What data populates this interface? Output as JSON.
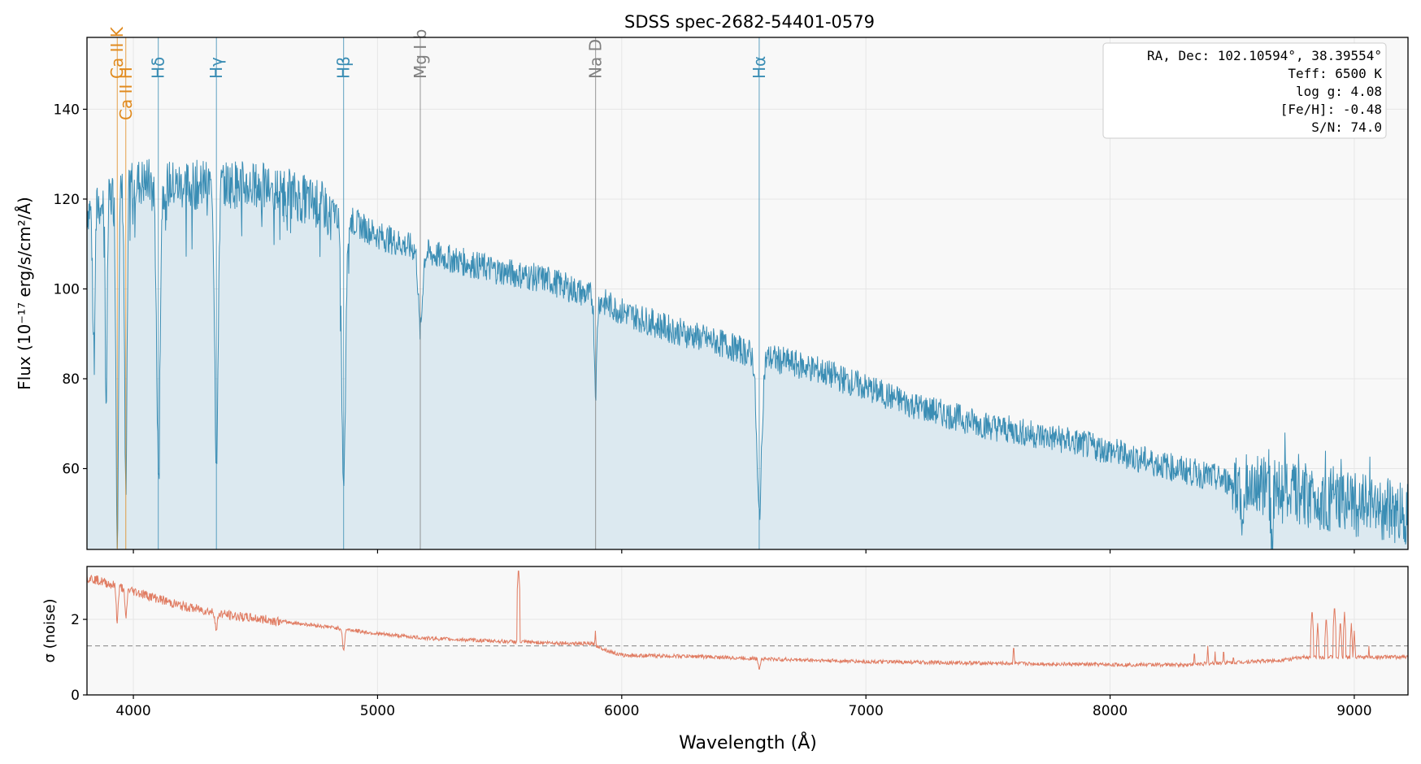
{
  "chart_data": [
    {
      "type": "line",
      "title": "SDSS spec-2682-54401-0579",
      "ylabel": "Flux (10⁻¹⁷ erg/s/cm²/Å)",
      "xlim": [
        3810,
        9220
      ],
      "ylim": [
        42,
        156
      ],
      "y_ticks": [
        60,
        80,
        100,
        120,
        140
      ],
      "grid": true,
      "fill_under": true,
      "colors": {
        "line": "#3a8db4",
        "fill": "#dce9f0",
        "background": "#f8f8f8",
        "annotation_box": "#ffffff"
      },
      "series": [
        {
          "continuum": [
            [
              3820,
              118
            ],
            [
              3900,
              120
            ],
            [
              4000,
              124
            ],
            [
              4200,
              123
            ],
            [
              4400,
              123.5
            ],
            [
              4600,
              122
            ],
            [
              4800,
              118
            ],
            [
              5000,
              112
            ],
            [
              5200,
              108
            ],
            [
              5500,
              104
            ],
            [
              5700,
              102
            ],
            [
              5890,
              98
            ],
            [
              6000,
              95
            ],
            [
              6200,
              91
            ],
            [
              6400,
              88
            ],
            [
              6560,
              85
            ],
            [
              6620,
              84.5
            ],
            [
              6800,
              82
            ],
            [
              7000,
              78
            ],
            [
              7200,
              74
            ],
            [
              7500,
              69.5
            ],
            [
              7800,
              66.5
            ],
            [
              8000,
              64
            ],
            [
              8200,
              61
            ],
            [
              8500,
              57
            ],
            [
              8800,
              54
            ],
            [
              9000,
              52
            ],
            [
              9220,
              50
            ]
          ],
          "noise_amplitude": 4,
          "absorption_lines": [
            {
              "center": 3838,
              "depth": 30,
              "width": 5
            },
            {
              "center": 3889,
              "depth": 45,
              "width": 4
            },
            {
              "center": 3934,
              "depth": 75,
              "width": 5
            },
            {
              "center": 3969,
              "depth": 70,
              "width": 5
            },
            {
              "center": 4102,
              "depth": 62,
              "width": 7
            },
            {
              "center": 4340,
              "depth": 60,
              "width": 7
            },
            {
              "center": 4861,
              "depth": 60,
              "width": 8
            },
            {
              "center": 5175,
              "depth": 18,
              "width": 8
            },
            {
              "center": 5893,
              "depth": 20,
              "width": 5
            },
            {
              "center": 6563,
              "depth": 35,
              "width": 10
            },
            {
              "center": 8542,
              "depth": 14,
              "width": 4
            },
            {
              "center": 8662,
              "depth": 12,
              "width": 4
            }
          ]
        }
      ],
      "line_markers": [
        {
          "label": "Ca II K",
          "wavelength": 3934,
          "color": "#e08a1e"
        },
        {
          "label": "Ca II H",
          "wavelength": 3969,
          "color": "#e08a1e"
        },
        {
          "label": "Hδ",
          "wavelength": 4102,
          "color": "#3a8db4"
        },
        {
          "label": "Hγ",
          "wavelength": 4340,
          "color": "#3a8db4"
        },
        {
          "label": "Hβ",
          "wavelength": 4861,
          "color": "#3a8db4"
        },
        {
          "label": "Mg I b",
          "wavelength": 5175,
          "color": "#7f7f7f"
        },
        {
          "label": "Na D",
          "wavelength": 5893,
          "color": "#7f7f7f"
        },
        {
          "label": "Hα",
          "wavelength": 6563,
          "color": "#3a8db4"
        }
      ],
      "annotation": [
        "RA, Dec: 102.10594°, 38.39554°",
        "Teff: 6500 K",
        "log g: 4.08",
        "[Fe/H]: -0.48",
        "S/N: 74.0"
      ]
    },
    {
      "type": "line",
      "xlabel": "Wavelength (Å)",
      "ylabel": "σ (noise)",
      "xlim": [
        3810,
        9220
      ],
      "ylim": [
        0,
        3.4
      ],
      "x_ticks": [
        4000,
        5000,
        6000,
        7000,
        8000,
        9000
      ],
      "y_ticks": [
        0,
        2
      ],
      "grid": true,
      "reference_line": {
        "y": 1.3,
        "style": "dashed",
        "color": "#999999"
      },
      "colors": {
        "line": "#e07b61",
        "background": "#f8f8f8"
      },
      "series": [
        {
          "trend": [
            [
              3820,
              3.1
            ],
            [
              4000,
              2.75
            ],
            [
              4200,
              2.35
            ],
            [
              4400,
              2.1
            ],
            [
              4600,
              1.95
            ],
            [
              4800,
              1.8
            ],
            [
              5000,
              1.62
            ],
            [
              5200,
              1.5
            ],
            [
              5500,
              1.42
            ],
            [
              5880,
              1.35
            ],
            [
              5950,
              1.15
            ],
            [
              6000,
              1.05
            ],
            [
              6300,
              1.02
            ],
            [
              6600,
              0.95
            ],
            [
              7000,
              0.88
            ],
            [
              7500,
              0.84
            ],
            [
              8000,
              0.8
            ],
            [
              8300,
              0.8
            ],
            [
              8700,
              0.92
            ],
            [
              8800,
              1.0
            ],
            [
              9220,
              1.0
            ]
          ],
          "noise_amplitude": 0.05,
          "spikes": [
            {
              "center": 5577,
              "height": 3.4
            },
            {
              "center": 5892,
              "height": 1.7
            },
            {
              "center": 7605,
              "height": 1.35
            },
            {
              "center": 8345,
              "height": 1.2
            },
            {
              "center": 8400,
              "height": 1.3
            },
            {
              "center": 8430,
              "height": 1.15
            },
            {
              "center": 8465,
              "height": 1.25
            },
            {
              "center": 8505,
              "height": 1.1
            },
            {
              "center": 8827,
              "height": 2.3
            },
            {
              "center": 8850,
              "height": 1.9
            },
            {
              "center": 8885,
              "height": 2.1
            },
            {
              "center": 8919,
              "height": 2.4
            },
            {
              "center": 8943,
              "height": 2.0
            },
            {
              "center": 8960,
              "height": 2.2
            },
            {
              "center": 8988,
              "height": 1.9
            },
            {
              "center": 9000,
              "height": 1.7
            },
            {
              "center": 9060,
              "height": 1.3
            }
          ],
          "dips": [
            {
              "center": 3934,
              "depth": 0.9
            },
            {
              "center": 3969,
              "depth": 0.8
            },
            {
              "center": 4340,
              "depth": 0.5
            },
            {
              "center": 4861,
              "depth": 0.6
            },
            {
              "center": 6563,
              "depth": 0.25
            }
          ]
        }
      ]
    }
  ]
}
